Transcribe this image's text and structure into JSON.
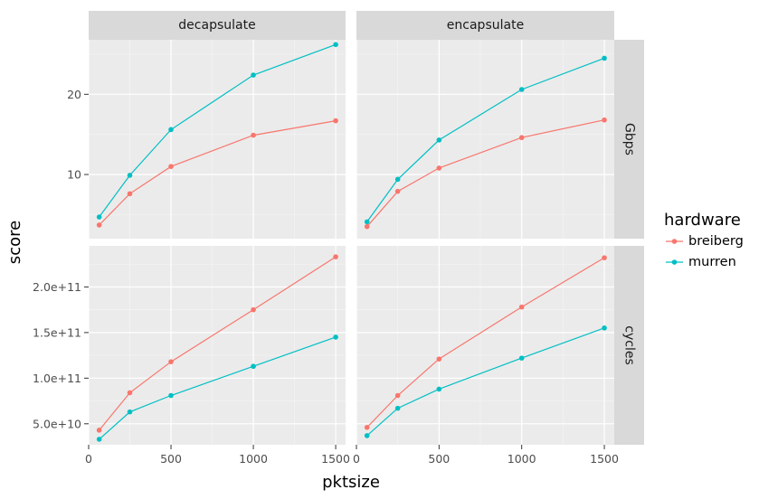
{
  "chart_data": {
    "type": "line",
    "x_label": "pktsize",
    "y_label": "score",
    "legend": {
      "title": "hardware",
      "placement": "right",
      "entries": [
        {
          "name": "breiberg",
          "color": "#F8766D"
        },
        {
          "name": "murren",
          "color": "#00BFC4"
        }
      ]
    },
    "col_facets": [
      "decapsulate",
      "encapsulate"
    ],
    "row_facets": [
      "Gbps",
      "cycles"
    ],
    "x_ticks": [
      "0",
      "500",
      "1000",
      "1500"
    ],
    "x_tick_values": [
      0,
      500,
      1000,
      1500
    ],
    "x_range": [
      0,
      1560
    ],
    "x": [
      64,
      250,
      500,
      1000,
      1500
    ],
    "rows": [
      {
        "name": "Gbps",
        "y_range": [
          2.0,
          26.8
        ],
        "y_ticks": [
          "10",
          "20"
        ],
        "y_tick_values": [
          10,
          20
        ],
        "panels": [
          {
            "facet": "decapsulate",
            "series": [
              {
                "name": "breiberg",
                "values": [
                  3.7,
                  7.6,
                  11.0,
                  14.9,
                  16.7
                ]
              },
              {
                "name": "murren",
                "values": [
                  4.7,
                  9.9,
                  15.6,
                  22.4,
                  26.2
                ]
              }
            ]
          },
          {
            "facet": "encapsulate",
            "series": [
              {
                "name": "breiberg",
                "values": [
                  3.5,
                  7.9,
                  10.8,
                  14.6,
                  16.8
                ]
              },
              {
                "name": "murren",
                "values": [
                  4.1,
                  9.4,
                  14.3,
                  20.6,
                  24.5
                ]
              }
            ]
          }
        ]
      },
      {
        "name": "cycles",
        "y_range": [
          27000000000.0,
          245000000000.0
        ],
        "y_ticks": [
          "5.0e+10",
          "1.0e+11",
          "1.5e+11",
          "2.0e+11"
        ],
        "y_tick_values": [
          50000000000.0,
          100000000000.0,
          150000000000.0,
          200000000000.0
        ],
        "panels": [
          {
            "facet": "decapsulate",
            "series": [
              {
                "name": "breiberg",
                "values": [
                  43000000000.0,
                  84000000000.0,
                  118000000000.0,
                  175000000000.0,
                  233000000000.0
                ]
              },
              {
                "name": "murren",
                "values": [
                  33000000000.0,
                  63000000000.0,
                  81000000000.0,
                  113000000000.0,
                  145000000000.0
                ]
              }
            ]
          },
          {
            "facet": "encapsulate",
            "series": [
              {
                "name": "breiberg",
                "values": [
                  46000000000.0,
                  81000000000.0,
                  121000000000.0,
                  178000000000.0,
                  232000000000.0
                ]
              },
              {
                "name": "murren",
                "values": [
                  37000000000.0,
                  67000000000.0,
                  88000000000.0,
                  122000000000.0,
                  155000000000.0
                ]
              }
            ]
          }
        ]
      }
    ]
  }
}
